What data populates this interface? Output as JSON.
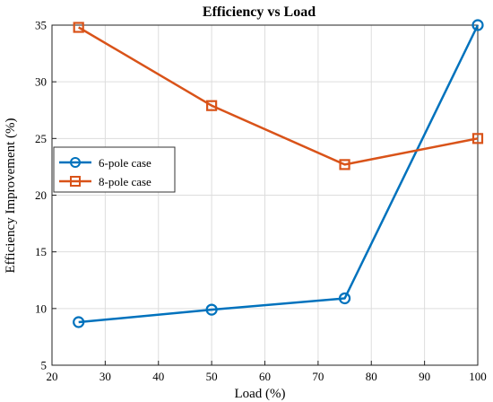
{
  "chart_data": {
    "type": "line",
    "title": "Efficiency vs Load",
    "xlabel": "Load (%)",
    "ylabel": "Efficiency Improvement (%)",
    "xlim": [
      20,
      100
    ],
    "ylim": [
      5,
      35
    ],
    "xticks": [
      20,
      30,
      40,
      50,
      60,
      70,
      80,
      90,
      100
    ],
    "yticks": [
      5,
      10,
      15,
      20,
      25,
      30,
      35
    ],
    "grid": true,
    "legend_position": "left-middle",
    "series": [
      {
        "name": "6-pole case",
        "marker": "circle",
        "color": "#0072BD",
        "x": [
          25,
          50,
          75,
          100
        ],
        "y": [
          8.8,
          9.9,
          10.9,
          35.0
        ]
      },
      {
        "name": "8-pole case",
        "marker": "square",
        "color": "#D95319",
        "x": [
          25,
          50,
          75,
          100
        ],
        "y": [
          34.8,
          27.9,
          22.7,
          25.0
        ]
      }
    ]
  }
}
